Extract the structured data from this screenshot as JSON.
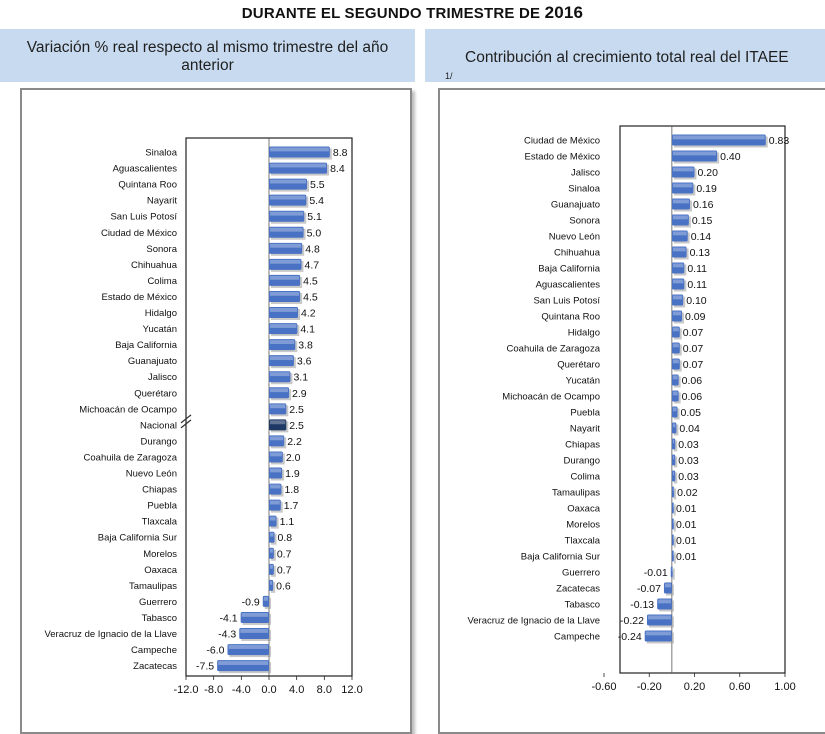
{
  "title": {
    "text": "DURANTE EL SEGUNDO TRIMESTRE DE",
    "year": "2016"
  },
  "headers": {
    "left": "Variación % real respecto al mismo trimestre del año anterior",
    "right": "Contribución al crecimiento total real del ITAEE",
    "right_sup": "1/"
  },
  "colors": {
    "bar": "#4a72c4",
    "highlight": "#1f3966",
    "header_bg": "#c8daf0"
  },
  "chart_data": [
    {
      "type": "bar",
      "orientation": "horizontal",
      "categories": [
        "Sinaloa",
        "Aguascalientes",
        "Quintana Roo",
        "Nayarit",
        "San Luis Potosí",
        "Ciudad de México",
        "Sonora",
        "Chihuahua",
        "Colima",
        "Estado de México",
        "Hidalgo",
        "Yucatán",
        "Baja California",
        "Guanajuato",
        "Jalisco",
        "Querétaro",
        "Michoacán de Ocampo",
        "Nacional",
        "Durango",
        "Coahuila de Zaragoza",
        "Nuevo León",
        "Chiapas",
        "Puebla",
        "Tlaxcala",
        "Baja California Sur",
        "Morelos",
        "Oaxaca",
        "Tamaulipas",
        "Guerrero",
        "Tabasco",
        "Veracruz de Ignacio de la Llave",
        "Campeche",
        "Zacatecas"
      ],
      "values": [
        8.8,
        8.4,
        5.5,
        5.4,
        5.1,
        5.0,
        4.8,
        4.7,
        4.5,
        4.5,
        4.2,
        4.1,
        3.8,
        3.6,
        3.1,
        2.9,
        2.5,
        2.5,
        2.2,
        2.0,
        1.9,
        1.8,
        1.7,
        1.1,
        0.8,
        0.7,
        0.7,
        0.6,
        -0.9,
        -4.1,
        -4.3,
        -6.0,
        -7.5
      ],
      "value_labels": [
        "8.8",
        "8.4",
        "5.5",
        "5.4",
        "5.1",
        "5.0",
        "4.8",
        "4.7",
        "4.5",
        "4.5",
        "4.2",
        "4.1",
        "3.8",
        "3.6",
        "3.1",
        "2.9",
        "2.5",
        "2.5",
        "2.2",
        "2.0",
        "1.9",
        "1.8",
        "1.7",
        "1.1",
        "0.8",
        "0.7",
        "0.7",
        "0.6",
        "-0.9",
        "-4.1",
        "-4.3",
        "-6.0",
        "-7.5"
      ],
      "highlight": "Nacional",
      "xlim": [
        -12.0,
        12.0
      ],
      "xticks": [
        "-12.0",
        "-8.0",
        "-4.0",
        "0.0",
        "4.0",
        "8.0",
        "12.0"
      ],
      "xtick_values": [
        -12,
        -8,
        -4,
        0,
        4,
        8,
        12
      ]
    },
    {
      "type": "bar",
      "orientation": "horizontal",
      "categories": [
        "Ciudad de México",
        "Estado de México",
        "Jalisco",
        "Sinaloa",
        "Guanajuato",
        "Sonora",
        "Nuevo León",
        "Chihuahua",
        "Baja California",
        "Aguascalientes",
        "San Luis Potosí",
        "Quintana Roo",
        "Hidalgo",
        "Coahuila de Zaragoza",
        "Querétaro",
        "Yucatán",
        "Michoacán de Ocampo",
        "Puebla",
        "Nayarit",
        "Chiapas",
        "Durango",
        "Colima",
        "Tamaulipas",
        "Oaxaca",
        "Morelos",
        "Tlaxcala",
        "Baja California Sur",
        "Guerrero",
        "Zacatecas",
        "Tabasco",
        "Veracruz de Ignacio de la Llave",
        "Campeche"
      ],
      "values": [
        0.83,
        0.4,
        0.2,
        0.19,
        0.16,
        0.15,
        0.14,
        0.13,
        0.11,
        0.11,
        0.1,
        0.09,
        0.07,
        0.07,
        0.07,
        0.06,
        0.06,
        0.05,
        0.04,
        0.03,
        0.03,
        0.03,
        0.02,
        0.01,
        0.01,
        0.01,
        0.01,
        -0.01,
        -0.07,
        -0.13,
        -0.22,
        -0.24
      ],
      "value_labels": [
        "0.83",
        "0.40",
        "0.20",
        "0.19",
        "0.16",
        "0.15",
        "0.14",
        "0.13",
        "0.11",
        "0.11",
        "0.10",
        "0.09",
        "0.07",
        "0.07",
        "0.07",
        "0.06",
        "0.06",
        "0.05",
        "0.04",
        "0.03",
        "0.03",
        "0.03",
        "0.02",
        "0.01",
        "0.01",
        "0.01",
        "0.01",
        "-0.01",
        "-0.07",
        "-0.13",
        "-0.22",
        "-0.24"
      ],
      "xlim": [
        -0.6,
        1.0
      ],
      "xticks": [
        "-0.60",
        "-0.20",
        "0.20",
        "0.60",
        "1.00"
      ],
      "xtick_values": [
        -0.6,
        -0.2,
        0.2,
        0.6,
        1.0
      ]
    }
  ]
}
